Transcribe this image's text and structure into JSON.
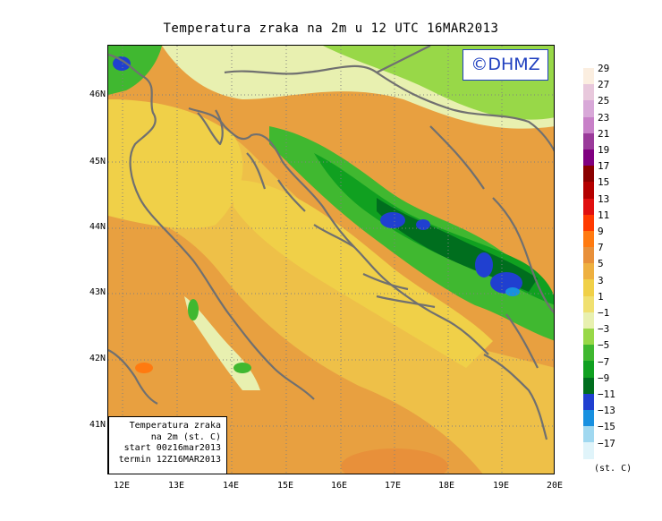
{
  "title": "Temperatura zraka na 2m u 12 UTC 16MAR2013",
  "logo": "©DHMZ",
  "legend_box": {
    "line1": "Temperatura zraka",
    "line2": "na 2m (st. C)",
    "line3": "start 00z16mar2013",
    "line4": "termin 12Z16MAR2013"
  },
  "lat_ticks": [
    "46N",
    "45N",
    "44N",
    "43N",
    "42N",
    "41N"
  ],
  "lon_ticks": [
    "12E",
    "13E",
    "14E",
    "15E",
    "16E",
    "17E",
    "18E",
    "19E",
    "20E"
  ],
  "colorbar": {
    "labels": [
      "29",
      "27",
      "25",
      "23",
      "21",
      "19",
      "17",
      "15",
      "13",
      "11",
      "9",
      "7",
      "5",
      "3",
      "1",
      "−1",
      "−3",
      "−5",
      "−7",
      "−9",
      "−11",
      "−13",
      "−15",
      "−17"
    ],
    "colors": [
      "#fbeee0",
      "#e8c8dc",
      "#d8a8d8",
      "#c880c8",
      "#9a3a9a",
      "#800080",
      "#8a0000",
      "#b40000",
      "#e01010",
      "#ff3a00",
      "#ff7a10",
      "#e8903a",
      "#eeb040",
      "#f0d048",
      "#f0e070",
      "#e8f0b0",
      "#98d848",
      "#40b830",
      "#10a020",
      "#006e1e",
      "#2040d0",
      "#1890e0",
      "#a0d8f0",
      "#e0f4fa"
    ],
    "unit": "(st. C)"
  },
  "colors": {
    "sea_warm": "#e8a040",
    "land_mild": "#eec048",
    "coast_line": "#707070",
    "grid_line": "#808080"
  }
}
